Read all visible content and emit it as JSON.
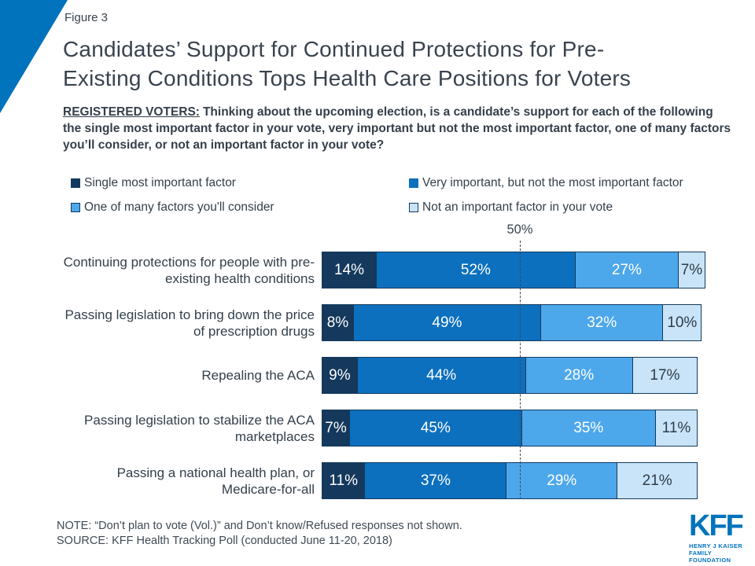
{
  "figure_label": "Figure 3",
  "title_lines": [
    "Candidates’ Support for Continued Protections for Pre-",
    "Existing Conditions Tops Health Care Positions for Voters"
  ],
  "subtitle": {
    "lead": "REGISTERED VOTERS:",
    "text": "Thinking about the upcoming election, is a candidate’s support for each of the following the single most important factor in your vote, very important but not the most important factor, one of many factors you’ll consider, or not an important factor in your vote?"
  },
  "palette": {
    "accent_blue": "#0073BC",
    "navy": "#14395C",
    "blue": "#0C70BE",
    "light_blue": "#4DA7EB",
    "pale_blue": "#C9E4F8",
    "outline": "#14395C",
    "label_on_dark": "#FFFFFF",
    "label_on_light": "#2E3B49",
    "dash_line": "#3E4953"
  },
  "legend": [
    {
      "label": "Single most important factor",
      "color_key": "navy"
    },
    {
      "label": "Very important, but not the most important factor",
      "color_key": "blue"
    },
    {
      "label": "One of many factors you'll consider",
      "color_key": "light_blue"
    },
    {
      "label": "Not an important factor in your vote",
      "color_key": "pale_blue"
    }
  ],
  "chart_data": {
    "type": "bar",
    "orientation": "horizontal-stacked",
    "xlim": [
      0,
      100
    ],
    "axis_marker": {
      "label": "50%",
      "value": 50
    },
    "legend_position": "top",
    "series_names": [
      "Single most important factor",
      "Very important, but not the most important factor",
      "One of many factors you'll consider",
      "Not an important factor in your vote"
    ],
    "series_color_keys": [
      "navy",
      "blue",
      "light_blue",
      "pale_blue"
    ],
    "categories": [
      "Continuing protections for people with pre-existing health conditions",
      "Passing legislation to bring down the price of prescription drugs",
      "Repealing the ACA",
      "Passing legislation to stabilize the ACA marketplaces",
      "Passing a national health plan, or Medicare-for-all"
    ],
    "rows": [
      {
        "category": "Continuing protections for people with pre-existing health conditions",
        "values": [
          14,
          52,
          27,
          7
        ],
        "labels": [
          "14%",
          "52%",
          "27%",
          "7%"
        ]
      },
      {
        "category": "Passing legislation to bring down the price of prescription drugs",
        "values": [
          8,
          49,
          32,
          10
        ],
        "labels": [
          "8%",
          "49%",
          "32%",
          "10%"
        ]
      },
      {
        "category": "Repealing the ACA",
        "values": [
          9,
          44,
          28,
          17
        ],
        "labels": [
          "9%",
          "44%",
          "28%",
          "17%"
        ]
      },
      {
        "category": "Passing legislation to stabilize the ACA marketplaces",
        "values": [
          7,
          45,
          35,
          11
        ],
        "labels": [
          "7%",
          "45%",
          "35%",
          "11%"
        ]
      },
      {
        "category": "Passing a national health plan, or Medicare-for-all",
        "values": [
          11,
          37,
          29,
          21
        ],
        "labels": [
          "11%",
          "37%",
          "29%",
          "21%"
        ]
      }
    ]
  },
  "note": "NOTE: “Don’t plan to vote (Vol.)” and Don’t know/Refused responses not shown.",
  "source": "SOURCE: KFF Health Tracking Poll (conducted June 11-20, 2018)",
  "logo": {
    "wordmark": "KFF",
    "tagline_lines": [
      "HENRY J KAISER",
      "FAMILY FOUNDATION"
    ]
  }
}
